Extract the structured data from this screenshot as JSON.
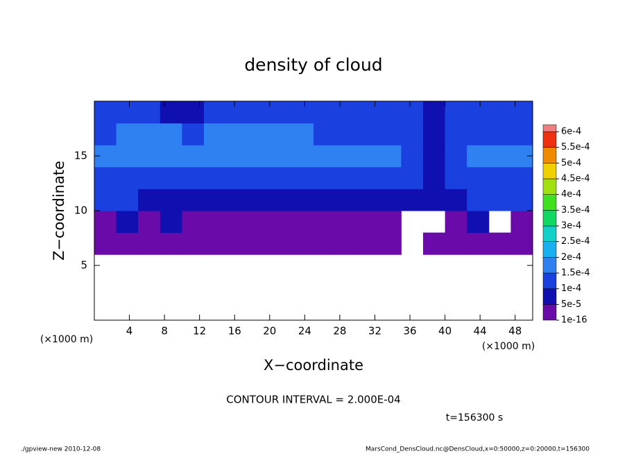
{
  "chart_data": {
    "type": "heatmap",
    "title": "density of cloud",
    "xlabel": "X−coordinate",
    "ylabel": "Z−coordinate",
    "x_unit": "(×1000 m)",
    "annotation": "CONTOUR INTERVAL = 2.000E-04",
    "time_label": "t=156300 s",
    "footer_left": "./gpview-new  2010-12-08",
    "footer_right": "MarsCond_DensCloud.nc@DensCloud,x=0:50000,z=0:20000,t=156300",
    "xlim": [
      0,
      50
    ],
    "ylim": [
      0,
      20
    ],
    "xticks": [
      4,
      8,
      12,
      16,
      20,
      24,
      28,
      32,
      36,
      40,
      44,
      48
    ],
    "yticks": [
      5,
      10,
      15
    ],
    "x_edges": [
      0,
      2.5,
      5,
      7.5,
      10,
      12.5,
      15,
      17.5,
      20,
      22.5,
      25,
      27.5,
      30,
      32.5,
      35,
      37.5,
      40,
      42.5,
      45,
      47.5,
      50
    ],
    "z_edges": [
      6,
      8,
      10,
      12,
      14,
      16,
      18,
      20
    ],
    "values": [
      [
        2e-05,
        2e-05,
        2e-05,
        2e-05,
        2e-05,
        2e-05,
        2e-05,
        2e-05,
        2e-05,
        2e-05,
        2e-05,
        2e-05,
        2e-05,
        2e-05,
        null,
        2e-05,
        2e-05,
        2e-05,
        2e-05,
        2e-05
      ],
      [
        2e-05,
        7e-05,
        2e-05,
        7e-05,
        2e-05,
        2e-05,
        2e-05,
        2e-05,
        2e-05,
        2e-05,
        2e-05,
        2e-05,
        2e-05,
        2e-05,
        null,
        null,
        2e-05,
        7e-05,
        null,
        2e-05
      ],
      [
        0.00012,
        0.00012,
        7e-05,
        7e-05,
        7e-05,
        7e-05,
        7e-05,
        7e-05,
        7e-05,
        7e-05,
        7e-05,
        7e-05,
        7e-05,
        7e-05,
        7e-05,
        7e-05,
        7e-05,
        0.00012,
        0.00012,
        0.00012
      ],
      [
        0.00012,
        0.00012,
        0.00012,
        0.00012,
        0.00012,
        0.00012,
        0.00012,
        0.00012,
        0.00012,
        0.00012,
        0.00012,
        0.00012,
        0.00012,
        0.00012,
        0.00012,
        7e-05,
        0.00012,
        0.00012,
        0.00012,
        0.00012
      ],
      [
        0.00017,
        0.00017,
        0.00017,
        0.00017,
        0.00017,
        0.00017,
        0.00017,
        0.00017,
        0.00017,
        0.00017,
        0.00017,
        0.00017,
        0.00017,
        0.00017,
        0.00012,
        7e-05,
        0.00012,
        0.00017,
        0.00017,
        0.00017
      ],
      [
        0.00012,
        0.00017,
        0.00017,
        0.00017,
        0.00012,
        0.00017,
        0.00017,
        0.00017,
        0.00017,
        0.00017,
        0.00012,
        0.00012,
        0.00012,
        0.00012,
        0.00012,
        7e-05,
        0.00012,
        0.00012,
        0.00012,
        0.00012
      ],
      [
        0.00012,
        0.00012,
        0.00012,
        7e-05,
        7e-05,
        0.00012,
        0.00012,
        0.00012,
        0.00012,
        0.00012,
        0.00012,
        0.00012,
        0.00012,
        0.00012,
        0.00012,
        7e-05,
        0.00012,
        0.00012,
        0.00012,
        0.00012
      ]
    ],
    "levels": [
      1e-16,
      5e-05,
      0.0001,
      0.00015,
      0.0002,
      0.00025,
      0.0003,
      0.00035,
      0.0004,
      0.00045,
      0.0005,
      0.00055,
      0.0006
    ],
    "level_ticks": [
      {
        "value": 1e-16,
        "label": "1e-16"
      },
      {
        "value": 5e-05,
        "label": "5e-5"
      },
      {
        "value": 0.0001,
        "label": "1e-4"
      },
      {
        "value": 0.00015,
        "label": "1.5e-4"
      },
      {
        "value": 0.0002,
        "label": "2e-4"
      },
      {
        "value": 0.00025,
        "label": "2.5e-4"
      },
      {
        "value": 0.0003,
        "label": "3e-4"
      },
      {
        "value": 0.00035,
        "label": "3.5e-4"
      },
      {
        "value": 0.0004,
        "label": "4e-4"
      },
      {
        "value": 0.00045,
        "label": "4.5e-4"
      },
      {
        "value": 0.0005,
        "label": "5e-4"
      },
      {
        "value": 0.00055,
        "label": "5.5e-4"
      },
      {
        "value": 0.0006,
        "label": "6e-4"
      }
    ],
    "colors": [
      "#6a0aa8",
      "#1010b0",
      "#1a40e0",
      "#2f80f0",
      "#18b0f0",
      "#10d0c8",
      "#10d860",
      "#40e020",
      "#a0e010",
      "#f0d000",
      "#f08a00",
      "#f03010",
      "#f08080"
    ]
  }
}
